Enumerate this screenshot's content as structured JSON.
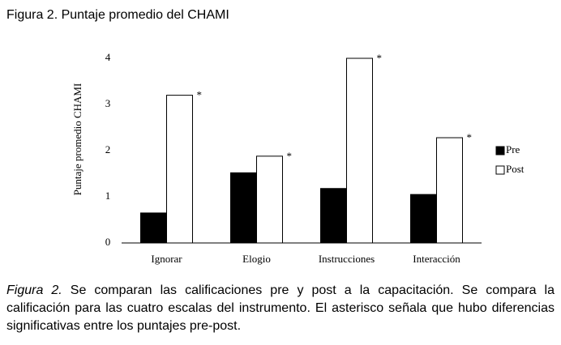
{
  "chart_data": {
    "type": "bar",
    "title": "Figura 2. Puntaje promedio del CHAMI",
    "y_label": "Puntaje promedio CHAMI",
    "categories": [
      "Ignorar",
      "Elogio",
      "Instrucciones",
      "Interacción"
    ],
    "series": [
      {
        "name": "Pre",
        "color": "#000000",
        "values": [
          0.65,
          1.52,
          1.18,
          1.05
        ]
      },
      {
        "name": "Post",
        "color": "#ffffff",
        "values": [
          3.2,
          1.88,
          4.0,
          2.28
        ]
      }
    ],
    "annotations": [
      "*",
      "*",
      "*",
      "*"
    ],
    "ylim": [
      0,
      4
    ],
    "yticks": [
      0,
      1,
      2,
      3,
      4
    ],
    "grid": false,
    "legend": "right"
  },
  "caption": {
    "label": "Figura 2.",
    "text": " Se comparan las calificaciones pre y post a la capacitación. Se compara la calificación para las cuatro escalas del instrumento. El asterisco señala que hubo diferencias significativas entre los puntajes pre-post."
  }
}
